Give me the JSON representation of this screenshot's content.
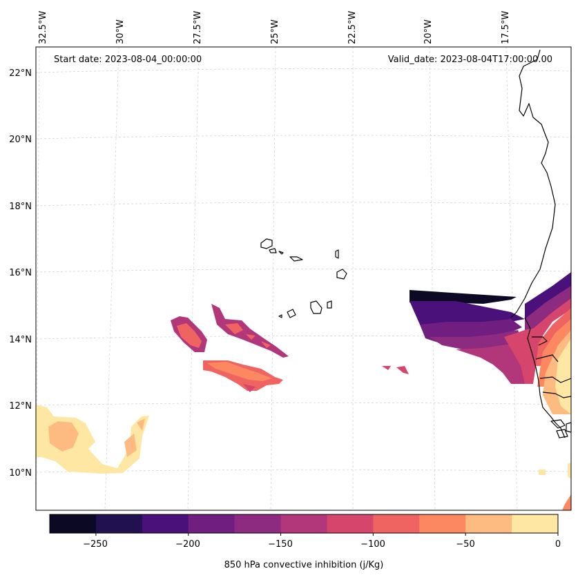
{
  "map": {
    "start_date": "Start date: 2023-08-04_00:00:00",
    "valid_date": "Valid_date: 2023-08-04T17:00:00.00",
    "lon_labels": [
      "32.5°W",
      "30°W",
      "27.5°W",
      "25°W",
      "22.5°W",
      "20°W",
      "17.5°W"
    ],
    "lat_labels": [
      "22°N",
      "20°N",
      "18°N",
      "16°N",
      "14°N",
      "12°N",
      "10°N"
    ]
  },
  "colorbar": {
    "label": "850 hPa convective inhibition (j/Kg)",
    "ticks": [
      "−250",
      "−200",
      "−150",
      "−100",
      "−50",
      "0"
    ],
    "levels": [
      -275,
      -250,
      -225,
      -200,
      -175,
      -150,
      -125,
      -100,
      -75,
      -50,
      -25,
      0
    ],
    "colors": [
      "#0b0924",
      "#221150",
      "#4b117a",
      "#701f81",
      "#8d2b81",
      "#b2367a",
      "#d5456c",
      "#ef6460",
      "#fb8861",
      "#febb81",
      "#fde7a3"
    ]
  }
}
